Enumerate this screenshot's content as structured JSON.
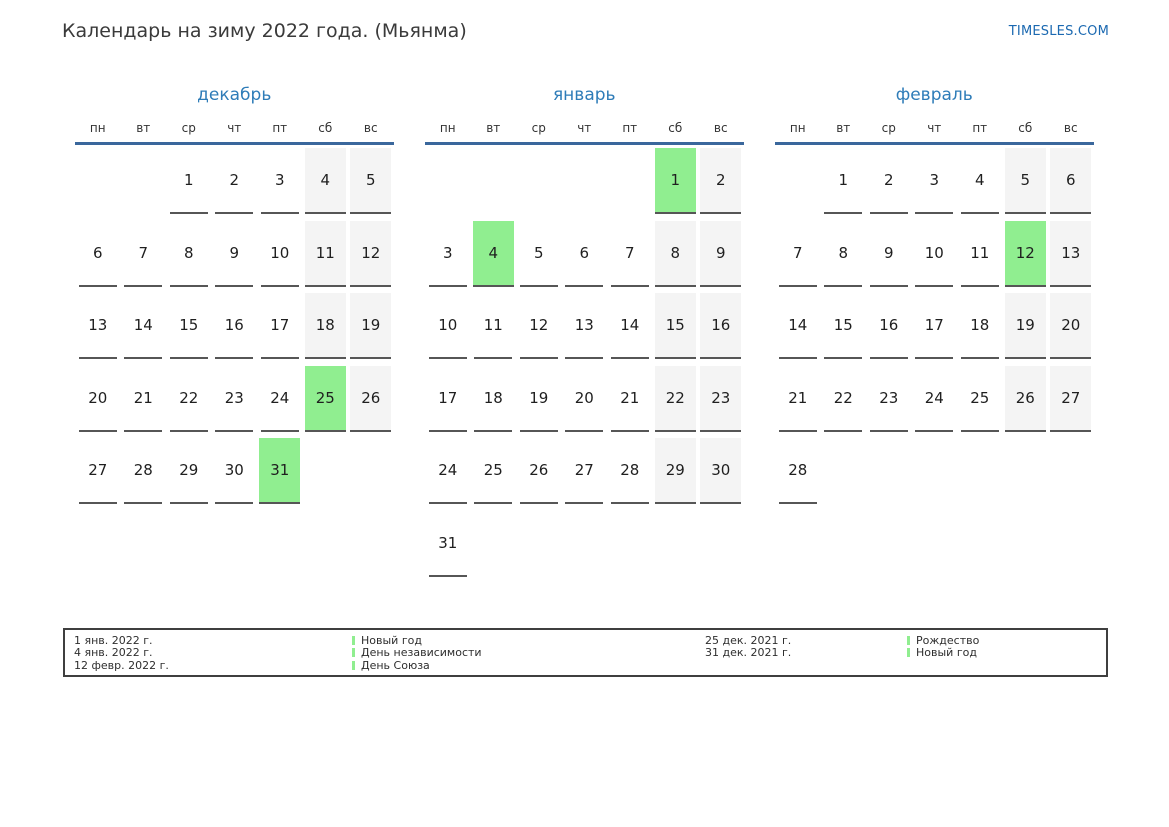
{
  "title": "Календарь на зиму 2022 года. (Мьянма)",
  "site": "TIMESLES.COM",
  "weekdays": [
    "пн",
    "вт",
    "ср",
    "чт",
    "пт",
    "сб",
    "вс"
  ],
  "weekend_columns": [
    5,
    6
  ],
  "months": [
    {
      "name": "декабрь",
      "holidays": [
        25,
        31
      ],
      "weeks": [
        [
          null,
          null,
          1,
          2,
          3,
          4,
          5
        ],
        [
          6,
          7,
          8,
          9,
          10,
          11,
          12
        ],
        [
          13,
          14,
          15,
          16,
          17,
          18,
          19
        ],
        [
          20,
          21,
          22,
          23,
          24,
          25,
          26
        ],
        [
          27,
          28,
          29,
          30,
          31,
          null,
          null
        ]
      ]
    },
    {
      "name": "январь",
      "holidays": [
        1,
        4
      ],
      "weeks": [
        [
          null,
          null,
          null,
          null,
          null,
          1,
          2
        ],
        [
          3,
          4,
          5,
          6,
          7,
          8,
          9
        ],
        [
          10,
          11,
          12,
          13,
          14,
          15,
          16
        ],
        [
          17,
          18,
          19,
          20,
          21,
          22,
          23
        ],
        [
          24,
          25,
          26,
          27,
          28,
          29,
          30
        ],
        [
          31,
          null,
          null,
          null,
          null,
          null,
          null
        ]
      ]
    },
    {
      "name": "февраль",
      "holidays": [
        12
      ],
      "weeks": [
        [
          null,
          1,
          2,
          3,
          4,
          5,
          6
        ],
        [
          7,
          8,
          9,
          10,
          11,
          12,
          13
        ],
        [
          14,
          15,
          16,
          17,
          18,
          19,
          20
        ],
        [
          21,
          22,
          23,
          24,
          25,
          26,
          27
        ],
        [
          28,
          null,
          null,
          null,
          null,
          null,
          null
        ]
      ]
    }
  ],
  "legend": {
    "groups": [
      {
        "items": [
          {
            "date": "1 янв. 2022 г.",
            "name": "Новый год"
          },
          {
            "date": "4 янв. 2022 г.",
            "name": "День независимости"
          },
          {
            "date": "12 февр. 2022 г.",
            "name": "День Союза"
          }
        ]
      },
      {
        "items": [
          {
            "date": "25 дек. 2021 г.",
            "name": "Рождество"
          },
          {
            "date": "31 дек. 2021 г.",
            "name": "Новый год"
          }
        ]
      }
    ]
  },
  "colors": {
    "accent_blue": "#2e7cb8",
    "header_line_blue": "#3a679c",
    "holiday_green": "#90ee90",
    "weekend_gray": "#f4f4f4",
    "site_link_blue": "#1b69b1"
  }
}
